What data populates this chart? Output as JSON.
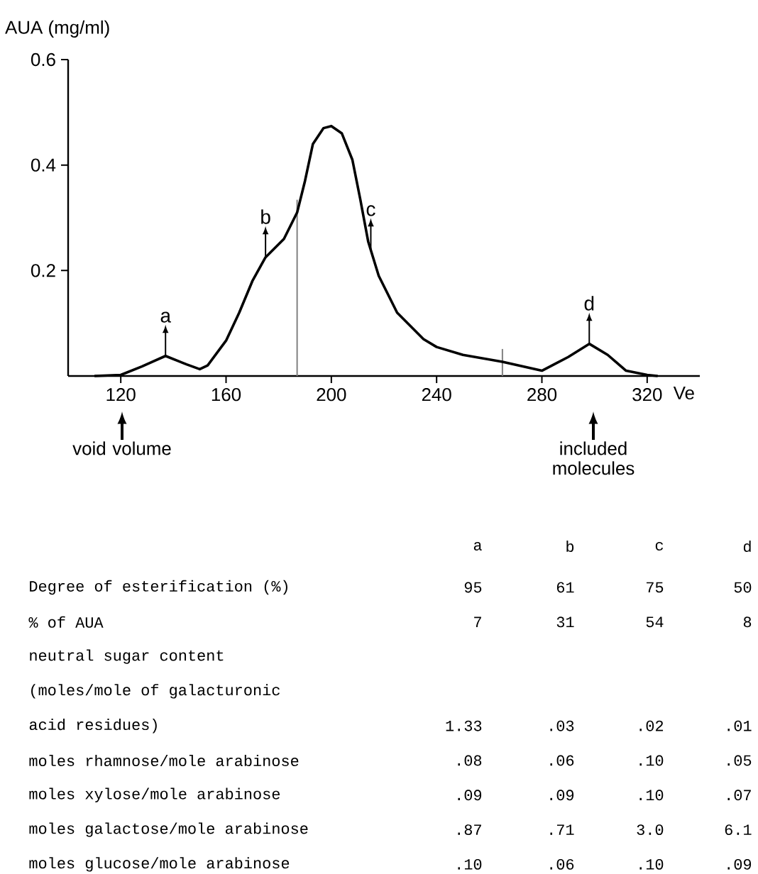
{
  "chart_data": [
    {
      "type": "line",
      "xlabel": "Ve",
      "ylabel": "AUA (mg/ml)",
      "x": [
        110,
        120,
        128,
        137,
        145,
        150,
        153,
        160,
        165,
        170,
        175,
        182,
        187,
        190,
        193,
        197,
        200,
        204,
        208,
        211,
        214,
        218,
        225,
        235,
        240,
        250,
        265,
        280,
        290,
        298,
        305,
        312,
        320,
        324
      ],
      "values": [
        0,
        0.002,
        0.018,
        0.038,
        0.022,
        0.013,
        0.02,
        0.067,
        0.12,
        0.18,
        0.225,
        0.26,
        0.31,
        0.37,
        0.44,
        0.47,
        0.474,
        0.46,
        0.41,
        0.335,
        0.255,
        0.19,
        0.12,
        0.07,
        0.055,
        0.04,
        0.027,
        0.01,
        0.036,
        0.061,
        0.04,
        0.01,
        0.002,
        0
      ],
      "color": "#000000",
      "xlim": [
        100,
        340
      ],
      "ylim": [
        0,
        0.6
      ],
      "xticks": [
        120,
        160,
        200,
        240,
        280,
        320
      ],
      "yticks": [
        0.2,
        0.4,
        0.6
      ],
      "ref_lines": [
        {
          "axis": "x",
          "value": 187,
          "color": "#808080"
        },
        {
          "axis": "x",
          "value": 265,
          "color": "#808080"
        }
      ],
      "annotations": [
        {
          "text": "a",
          "x": 137,
          "y": 0.038
        },
        {
          "text": "b",
          "x": 175,
          "y": 0.225
        },
        {
          "text": "c",
          "x": 215,
          "y": 0.24
        },
        {
          "text": "d",
          "x": 298,
          "y": 0.061
        },
        "void volume",
        "included molecules"
      ]
    },
    {
      "type": "other",
      "categories": [
        "a",
        "b",
        "c",
        "d"
      ],
      "y_categories": [
        "Degree of esterification (%)",
        "% of AUA",
        "neutral sugar content",
        "(moles/mole of galacturonic",
        "acid residues)",
        "moles rhamnose/mole arabinose",
        "moles xylose/mole arabinose",
        "moles galactose/mole arabinose",
        "moles glucose/mole arabinose"
      ],
      "cell_labels": [
        [
          "95",
          "61",
          "75",
          "50"
        ],
        [
          "7",
          "31",
          "54",
          "8"
        ],
        [
          null,
          null,
          null,
          null
        ],
        [
          null,
          null,
          null,
          null
        ],
        [
          "1.33",
          ".03",
          ".02",
          ".01"
        ],
        [
          ".08",
          ".06",
          ".10",
          ".05"
        ],
        [
          ".09",
          ".09",
          ".10",
          ".07"
        ],
        [
          ".87",
          ".71",
          "3.0",
          "6.1"
        ],
        [
          ".10",
          ".06",
          ".10",
          ".09"
        ]
      ]
    }
  ]
}
